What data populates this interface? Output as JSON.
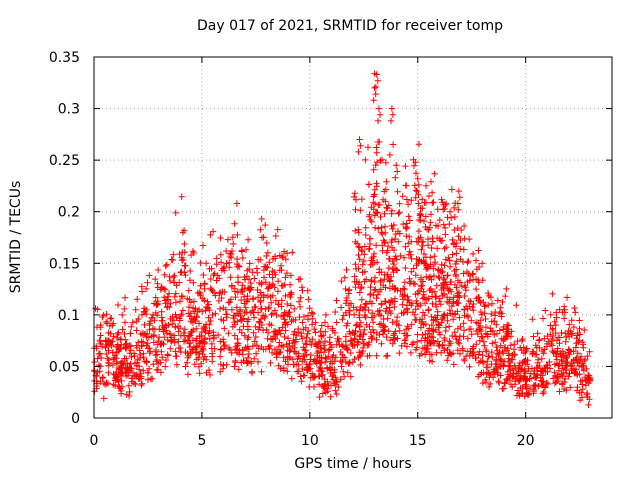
{
  "chart_data": {
    "type": "scatter",
    "title": "Day 017 of 2021, SRMTID for receiver tomp",
    "xlabel": "GPS time / hours",
    "ylabel": "SRMTID / TECUs",
    "xlim": [
      0,
      24
    ],
    "ylim": [
      0,
      0.35
    ],
    "xticks": [
      "0",
      "5",
      "10",
      "15",
      "20"
    ],
    "yticks": [
      "0",
      "0.05",
      "0.1",
      "0.15",
      "0.2",
      "0.25",
      "0.3",
      "0.35"
    ],
    "grid": true,
    "marker": "+",
    "color": "#ff0000",
    "profile": [
      [
        0.0,
        0.065
      ],
      [
        1.0,
        0.06
      ],
      [
        2.0,
        0.065
      ],
      [
        3.0,
        0.09
      ],
      [
        4.0,
        0.12
      ],
      [
        5.0,
        0.095
      ],
      [
        6.0,
        0.12
      ],
      [
        7.0,
        0.1
      ],
      [
        8.0,
        0.12
      ],
      [
        9.0,
        0.1
      ],
      [
        10.0,
        0.07
      ],
      [
        11.0,
        0.055
      ],
      [
        12.0,
        0.1
      ],
      [
        12.5,
        0.13
      ],
      [
        13.0,
        0.18
      ],
      [
        13.5,
        0.15
      ],
      [
        14.0,
        0.15
      ],
      [
        15.0,
        0.15
      ],
      [
        16.0,
        0.13
      ],
      [
        17.0,
        0.12
      ],
      [
        18.0,
        0.09
      ],
      [
        19.0,
        0.065
      ],
      [
        20.0,
        0.045
      ],
      [
        21.0,
        0.06
      ],
      [
        22.0,
        0.07
      ],
      [
        23.0,
        0.04
      ]
    ],
    "peaks": [
      {
        "x": 13.1,
        "y": 0.333
      },
      {
        "x": 13.0,
        "y": 0.32
      },
      {
        "x": 13.2,
        "y": 0.3
      },
      {
        "x": 13.8,
        "y": 0.3
      },
      {
        "x": 12.3,
        "y": 0.27
      },
      {
        "x": 14.0,
        "y": 0.245
      },
      {
        "x": 15.0,
        "y": 0.232
      },
      {
        "x": 16.9,
        "y": 0.22
      },
      {
        "x": 13.5,
        "y": 0.21
      },
      {
        "x": 16.5,
        "y": 0.2
      }
    ]
  }
}
